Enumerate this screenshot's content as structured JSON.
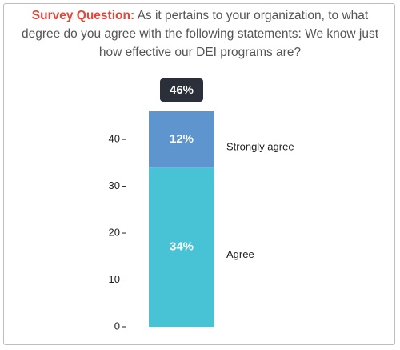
{
  "chart_data": {
    "type": "stacked_bar",
    "title_lead": "Survey Question:",
    "title": "As it pertains to your organization, to what degree do you agree with the following statements: We know just how effective our DEI programs are?",
    "total_label": "46%",
    "series": [
      {
        "name": "Agree",
        "color": "#48c3d6",
        "values": [
          34
        ],
        "value_labels": [
          "34%"
        ]
      },
      {
        "name": "Strongly agree",
        "color": "#5e95cf",
        "values": [
          12
        ],
        "value_labels": [
          "12%"
        ]
      }
    ],
    "ylim": [
      0,
      46
    ],
    "yticks": [
      0,
      10,
      20,
      30,
      40
    ]
  }
}
